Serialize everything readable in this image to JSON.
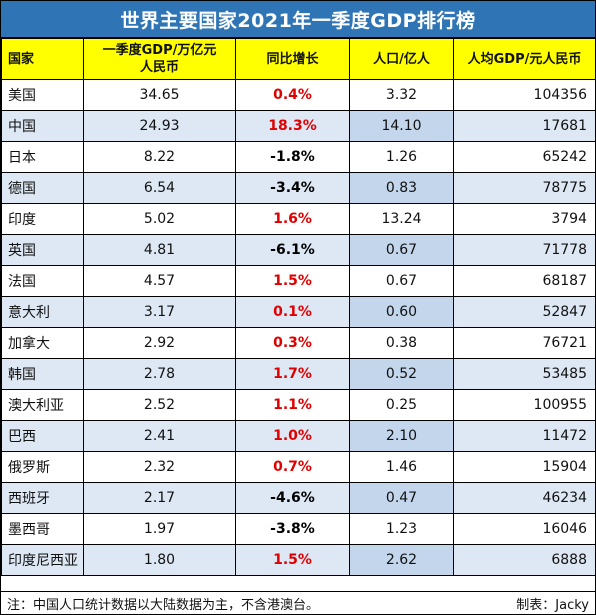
{
  "title": "世界主要国家2021年一季度GDP排行榜",
  "headers": {
    "country": "国家",
    "gdp_line1": "一季度GDP/万亿元",
    "gdp_line2": "人民币",
    "growth": "同比增长",
    "population": "人口/亿人",
    "per_capita": "人均GDP/元人民币"
  },
  "rows": [
    {
      "country": "美国",
      "gdp": "34.65",
      "growth": "0.4%",
      "population": "3.32",
      "per_capita": "104356"
    },
    {
      "country": "中国",
      "gdp": "24.93",
      "growth": "18.3%",
      "population": "14.10",
      "per_capita": "17681"
    },
    {
      "country": "日本",
      "gdp": "8.22",
      "growth": "-1.8%",
      "population": "1.26",
      "per_capita": "65242"
    },
    {
      "country": "德国",
      "gdp": "6.54",
      "growth": "-3.4%",
      "population": "0.83",
      "per_capita": "78775"
    },
    {
      "country": "印度",
      "gdp": "5.02",
      "growth": "1.6%",
      "population": "13.24",
      "per_capita": "3794"
    },
    {
      "country": "英国",
      "gdp": "4.81",
      "growth": "-6.1%",
      "population": "0.67",
      "per_capita": "71778"
    },
    {
      "country": "法国",
      "gdp": "4.57",
      "growth": "1.5%",
      "population": "0.67",
      "per_capita": "68187"
    },
    {
      "country": "意大利",
      "gdp": "3.17",
      "growth": "0.1%",
      "population": "0.60",
      "per_capita": "52847"
    },
    {
      "country": "加拿大",
      "gdp": "2.92",
      "growth": "0.3%",
      "population": "0.38",
      "per_capita": "76721"
    },
    {
      "country": "韩国",
      "gdp": "2.78",
      "growth": "1.7%",
      "population": "0.52",
      "per_capita": "53485"
    },
    {
      "country": "澳大利亚",
      "gdp": "2.52",
      "growth": "1.1%",
      "population": "0.25",
      "per_capita": "100955"
    },
    {
      "country": "巴西",
      "gdp": "2.41",
      "growth": "1.0%",
      "population": "2.10",
      "per_capita": "11472"
    },
    {
      "country": "俄罗斯",
      "gdp": "2.32",
      "growth": "0.7%",
      "population": "1.46",
      "per_capita": "15904"
    },
    {
      "country": "西班牙",
      "gdp": "2.17",
      "growth": "-4.6%",
      "population": "0.47",
      "per_capita": "46234"
    },
    {
      "country": "墨西哥",
      "gdp": "1.97",
      "growth": "-3.8%",
      "population": "1.23",
      "per_capita": "16046"
    },
    {
      "country": "印度尼西亚",
      "gdp": "1.80",
      "growth": "1.5%",
      "population": "2.62",
      "per_capita": "6888"
    }
  ],
  "note": "注：中国人口统计数据以大陆数据为主，不含港澳台。",
  "credit": "制表：Jacky",
  "colors": {
    "title_bg": "#2f75b5",
    "header_bg": "#ffff00",
    "alt_row_bg": "#dde8f4",
    "positive_growth": "#e00000"
  }
}
